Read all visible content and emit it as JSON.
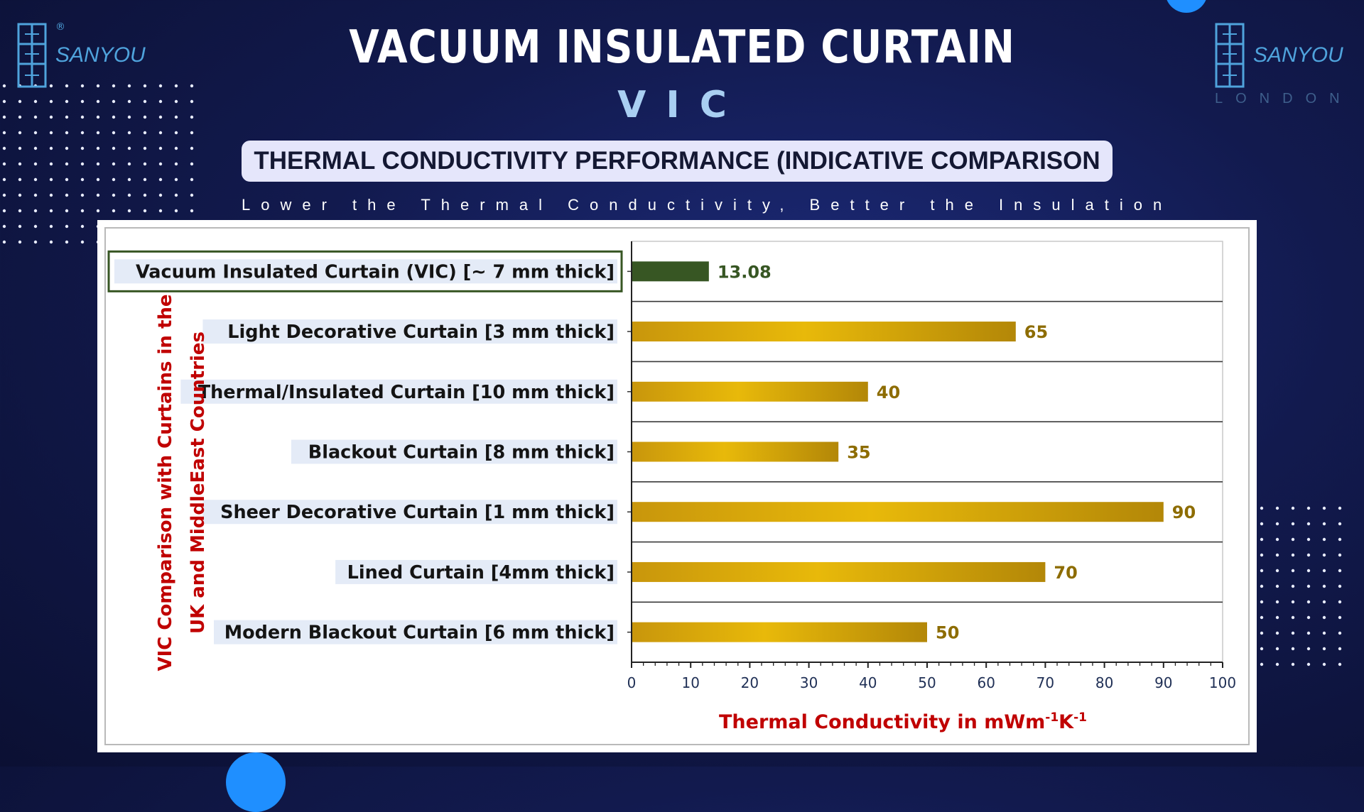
{
  "header": {
    "title": "VACUUM INSULATED CURTAIN",
    "subtitle": "VIC",
    "banner": "THERMAL CONDUCTIVITY PERFORMANCE (INDICATIVE COMPARISON",
    "tagline": "Lower the Thermal Conductivity, Better the Insulation"
  },
  "logo_left": {
    "brand": "SANYOU",
    "reg": "®",
    "icon": "sanyou-logo-icon"
  },
  "logo_right": {
    "brand": "SANYOU",
    "sub": "LONDON",
    "icon": "sanyou-logo-icon"
  },
  "colors": {
    "vic_bar": "#375623",
    "other_bar": "#d4a20a",
    "vic_label": "#375623",
    "other_label": "#8d6c00",
    "axis_title": "#c00000"
  },
  "chart_data": {
    "type": "bar",
    "orientation": "horizontal",
    "title": "",
    "categories": [
      "Vacuum Insulated Curtain (VIC) [~ 7 mm thick]",
      "Light Decorative Curtain [3 mm thick]",
      "Thermal/Insulated Curtain [10 mm thick]",
      "Blackout Curtain [8 mm thick]",
      "Sheer Decorative Curtain [1 mm thick]",
      "Lined Curtain [4mm thick]",
      "Modern Blackout Curtain [6 mm thick]"
    ],
    "values": [
      13.08,
      65,
      40,
      35,
      90,
      70,
      50
    ],
    "value_labels": [
      "13.08",
      "65",
      "40",
      "35",
      "90",
      "70",
      "50"
    ],
    "xlabel": "Thermal Conductivity in mWm",
    "xlabel_sup1": "-1",
    "xlabel_mid": "K",
    "xlabel_sup2": "-1",
    "ylabel_line1": "VIC Comparison with  Curtains in the",
    "ylabel_line2": "UK and MiddleEast Countries",
    "xlim": [
      0,
      100
    ],
    "xticks": [
      "0",
      "10",
      "20",
      "30",
      "40",
      "50",
      "60",
      "70",
      "80",
      "90",
      "100"
    ],
    "grid": "horizontal separators",
    "highlight_category_index": 0
  }
}
